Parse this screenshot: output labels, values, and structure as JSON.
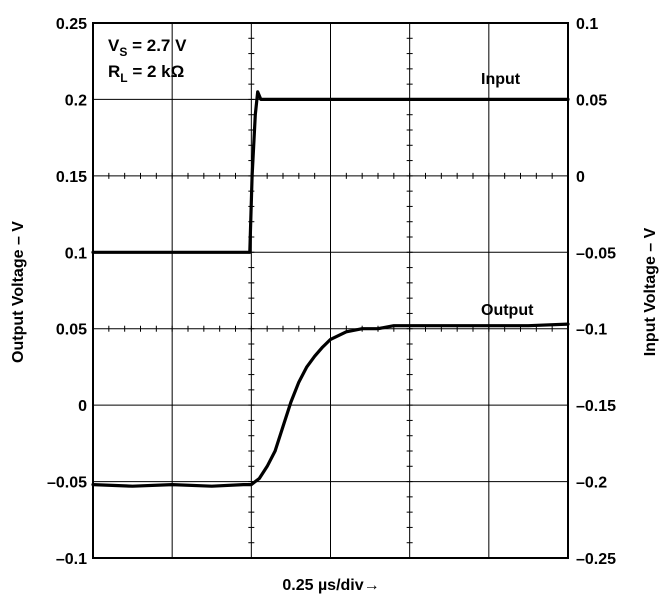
{
  "chart_data": {
    "type": "line",
    "title": "",
    "xlabel": "0.25 µs/div→",
    "ylabel": "Output Voltage – V",
    "y2label": "Input Voltage – V",
    "x_divisions": 6,
    "ylim": [
      -0.1,
      0.25
    ],
    "y2lim": [
      -0.25,
      0.1
    ],
    "yticks": [
      "–0.1",
      "–0.05",
      "0",
      "0.05",
      "0.1",
      "0.15",
      "0.2",
      "0.25"
    ],
    "y2ticks": [
      "–0.25",
      "–0.2",
      "–0.15",
      "–0.1",
      "–0.05",
      "0",
      "0.05",
      "0.1"
    ],
    "grid": true,
    "annotation": {
      "line1_main": "V",
      "line1_sub": "S",
      "line1_rest": " = 2.7 V",
      "line2_main": "R",
      "line2_sub": "L",
      "line2_rest": " = 2 kΩ"
    },
    "series": [
      {
        "name": "Input",
        "axis": "right",
        "x": [
          0,
          0.5,
          1.0,
          1.5,
          1.98,
          2.01,
          2.05,
          2.08,
          2.12,
          2.2,
          3,
          4,
          5,
          6
        ],
        "y": [
          -0.05,
          -0.05,
          -0.05,
          -0.05,
          -0.05,
          0.0,
          0.04,
          0.055,
          0.05,
          0.05,
          0.05,
          0.05,
          0.05,
          0.05
        ]
      },
      {
        "name": "Output",
        "axis": "left",
        "x": [
          0,
          0.5,
          1.0,
          1.5,
          1.9,
          2.0,
          2.1,
          2.2,
          2.3,
          2.4,
          2.5,
          2.6,
          2.7,
          2.8,
          2.9,
          3.0,
          3.2,
          3.4,
          3.6,
          3.8,
          4.0,
          4.5,
          5.0,
          5.5,
          6.0
        ],
        "y": [
          -0.052,
          -0.053,
          -0.052,
          -0.053,
          -0.052,
          -0.052,
          -0.048,
          -0.04,
          -0.03,
          -0.014,
          0.002,
          0.015,
          0.025,
          0.032,
          0.038,
          0.043,
          0.048,
          0.05,
          0.05,
          0.052,
          0.052,
          0.052,
          0.052,
          0.052,
          0.053
        ]
      }
    ]
  }
}
